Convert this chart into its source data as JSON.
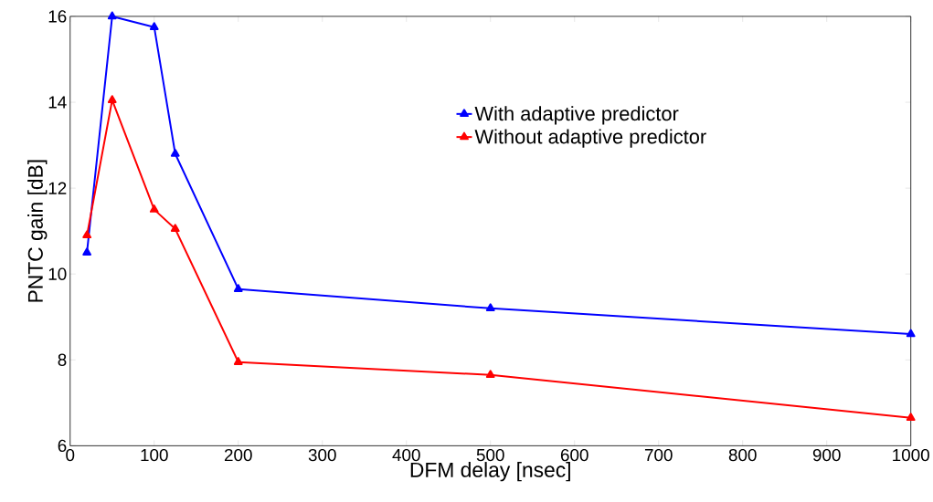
{
  "chart_data": {
    "type": "line",
    "xlabel": "DFM delay [nsec]",
    "ylabel": "PNTC gain  [dB]",
    "x": [
      20,
      50,
      100,
      125,
      200,
      500,
      1000
    ],
    "series": [
      {
        "name": "With adaptive predictor",
        "color": "#0000ff",
        "values": [
          10.5,
          16.0,
          15.75,
          12.8,
          9.65,
          9.2,
          8.6
        ]
      },
      {
        "name": "Without adaptive predictor",
        "color": "#ff0000",
        "values": [
          10.9,
          14.05,
          11.5,
          11.05,
          7.95,
          7.65,
          6.65
        ]
      }
    ],
    "xlim": [
      0,
      1000
    ],
    "ylim": [
      6,
      16
    ],
    "xticks": [
      0,
      100,
      200,
      300,
      400,
      500,
      600,
      700,
      800,
      900,
      1000
    ],
    "yticks": [
      6,
      8,
      10,
      12,
      14,
      16
    ],
    "grid": false,
    "legend": "top right",
    "marker": "triangle",
    "line_style": "solid"
  }
}
